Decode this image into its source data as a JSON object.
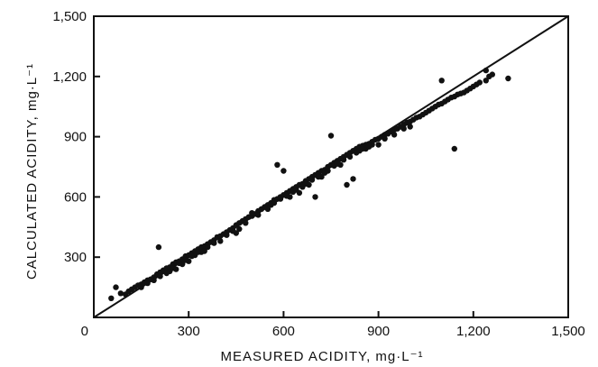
{
  "chart_data": {
    "type": "scatter",
    "title": "",
    "xlabel": "MEASURED ACIDITY, mg·L⁻¹",
    "ylabel": "CALCULATED ACIDITY, mg·L⁻¹",
    "xlim": [
      0,
      1500
    ],
    "ylim": [
      0,
      1500
    ],
    "x_ticks": [
      "0",
      "300",
      "600",
      "900",
      "1,200",
      "1,500"
    ],
    "y_ticks": [
      "300",
      "600",
      "900",
      "1,200",
      "1,500"
    ],
    "grid": false,
    "legend": "none",
    "reference_line": {
      "x": [
        0,
        1500
      ],
      "y": [
        0,
        1500
      ]
    },
    "series": [
      {
        "points": [
          [
            55,
            95
          ],
          [
            70,
            150
          ],
          [
            85,
            120
          ],
          [
            100,
            115
          ],
          [
            110,
            130
          ],
          [
            120,
            140
          ],
          [
            130,
            150
          ],
          [
            140,
            160
          ],
          [
            150,
            165
          ],
          [
            160,
            175
          ],
          [
            170,
            185
          ],
          [
            180,
            190
          ],
          [
            190,
            200
          ],
          [
            200,
            215
          ],
          [
            210,
            225
          ],
          [
            205,
            350
          ],
          [
            220,
            235
          ],
          [
            230,
            245
          ],
          [
            240,
            250
          ],
          [
            250,
            265
          ],
          [
            260,
            275
          ],
          [
            270,
            280
          ],
          [
            280,
            290
          ],
          [
            290,
            305
          ],
          [
            300,
            310
          ],
          [
            310,
            320
          ],
          [
            320,
            330
          ],
          [
            330,
            340
          ],
          [
            340,
            350
          ],
          [
            350,
            355
          ],
          [
            360,
            365
          ],
          [
            370,
            375
          ],
          [
            380,
            385
          ],
          [
            390,
            400
          ],
          [
            400,
            405
          ],
          [
            410,
            415
          ],
          [
            420,
            425
          ],
          [
            430,
            435
          ],
          [
            440,
            445
          ],
          [
            450,
            460
          ],
          [
            460,
            470
          ],
          [
            470,
            480
          ],
          [
            480,
            490
          ],
          [
            490,
            500
          ],
          [
            500,
            505
          ],
          [
            510,
            515
          ],
          [
            520,
            530
          ],
          [
            530,
            540
          ],
          [
            540,
            550
          ],
          [
            550,
            560
          ],
          [
            560,
            570
          ],
          [
            570,
            585
          ],
          [
            580,
            590
          ],
          [
            590,
            600
          ],
          [
            600,
            610
          ],
          [
            610,
            620
          ],
          [
            620,
            630
          ],
          [
            630,
            640
          ],
          [
            640,
            650
          ],
          [
            650,
            660
          ],
          [
            660,
            665
          ],
          [
            670,
            680
          ],
          [
            680,
            690
          ],
          [
            690,
            700
          ],
          [
            700,
            710
          ],
          [
            710,
            720
          ],
          [
            720,
            730
          ],
          [
            730,
            735
          ],
          [
            740,
            750
          ],
          [
            750,
            760
          ],
          [
            760,
            770
          ],
          [
            770,
            780
          ],
          [
            780,
            790
          ],
          [
            790,
            800
          ],
          [
            800,
            810
          ],
          [
            810,
            820
          ],
          [
            820,
            830
          ],
          [
            830,
            840
          ],
          [
            840,
            850
          ],
          [
            850,
            855
          ],
          [
            860,
            860
          ],
          [
            870,
            865
          ],
          [
            880,
            875
          ],
          [
            890,
            885
          ],
          [
            900,
            890
          ],
          [
            910,
            900
          ],
          [
            920,
            910
          ],
          [
            930,
            915
          ],
          [
            940,
            925
          ],
          [
            950,
            935
          ],
          [
            960,
            940
          ],
          [
            970,
            950
          ],
          [
            980,
            960
          ],
          [
            990,
            970
          ],
          [
            1000,
            975
          ],
          [
            1010,
            985
          ],
          [
            1020,
            995
          ],
          [
            1030,
            1000
          ],
          [
            1040,
            1010
          ],
          [
            1050,
            1020
          ],
          [
            1060,
            1030
          ],
          [
            1070,
            1040
          ],
          [
            1080,
            1050
          ],
          [
            1090,
            1060
          ],
          [
            1100,
            1065
          ],
          [
            1110,
            1075
          ],
          [
            1120,
            1085
          ],
          [
            1130,
            1095
          ],
          [
            1140,
            1100
          ],
          [
            1150,
            1110
          ],
          [
            1160,
            1115
          ],
          [
            1170,
            1120
          ],
          [
            1180,
            1130
          ],
          [
            1190,
            1140
          ],
          [
            1200,
            1150
          ],
          [
            1210,
            1160
          ],
          [
            1220,
            1170
          ],
          [
            1240,
            1180
          ],
          [
            1250,
            1200
          ],
          [
            1260,
            1210
          ],
          [
            1310,
            1190
          ],
          [
            1140,
            840
          ],
          [
            1100,
            1180
          ],
          [
            1240,
            1230
          ],
          [
            580,
            760
          ],
          [
            600,
            730
          ],
          [
            750,
            905
          ],
          [
            800,
            660
          ],
          [
            700,
            600
          ],
          [
            820,
            690
          ],
          [
            450,
            420
          ],
          [
            500,
            520
          ],
          [
            550,
            540
          ],
          [
            650,
            620
          ],
          [
            300,
            280
          ],
          [
            350,
            330
          ],
          [
            400,
            380
          ],
          [
            900,
            860
          ],
          [
            950,
            910
          ],
          [
            1000,
            950
          ],
          [
            480,
            470
          ],
          [
            520,
            510
          ],
          [
            620,
            600
          ],
          [
            680,
            660
          ],
          [
            720,
            700
          ],
          [
            780,
            760
          ],
          [
            860,
            840
          ],
          [
            880,
            860
          ],
          [
            920,
            890
          ],
          [
            980,
            940
          ],
          [
            240,
            230
          ],
          [
            260,
            240
          ],
          [
            280,
            265
          ],
          [
            320,
            310
          ],
          [
            340,
            325
          ],
          [
            360,
            350
          ],
          [
            380,
            370
          ],
          [
            420,
            410
          ],
          [
            440,
            430
          ],
          [
            460,
            440
          ],
          [
            560,
            560
          ],
          [
            570,
            570
          ],
          [
            590,
            590
          ],
          [
            610,
            605
          ],
          [
            630,
            625
          ],
          [
            640,
            635
          ],
          [
            660,
            650
          ],
          [
            670,
            665
          ],
          [
            690,
            685
          ],
          [
            710,
            700
          ],
          [
            730,
            720
          ],
          [
            740,
            730
          ],
          [
            760,
            755
          ],
          [
            770,
            765
          ],
          [
            790,
            785
          ],
          [
            810,
            800
          ],
          [
            830,
            820
          ],
          [
            840,
            830
          ],
          [
            850,
            840
          ],
          [
            870,
            850
          ],
          [
            150,
            150
          ],
          [
            170,
            170
          ],
          [
            190,
            185
          ],
          [
            210,
            205
          ],
          [
            230,
            220
          ],
          [
            250,
            245
          ],
          [
            270,
            270
          ],
          [
            290,
            285
          ],
          [
            310,
            305
          ],
          [
            330,
            325
          ]
        ]
      }
    ]
  }
}
